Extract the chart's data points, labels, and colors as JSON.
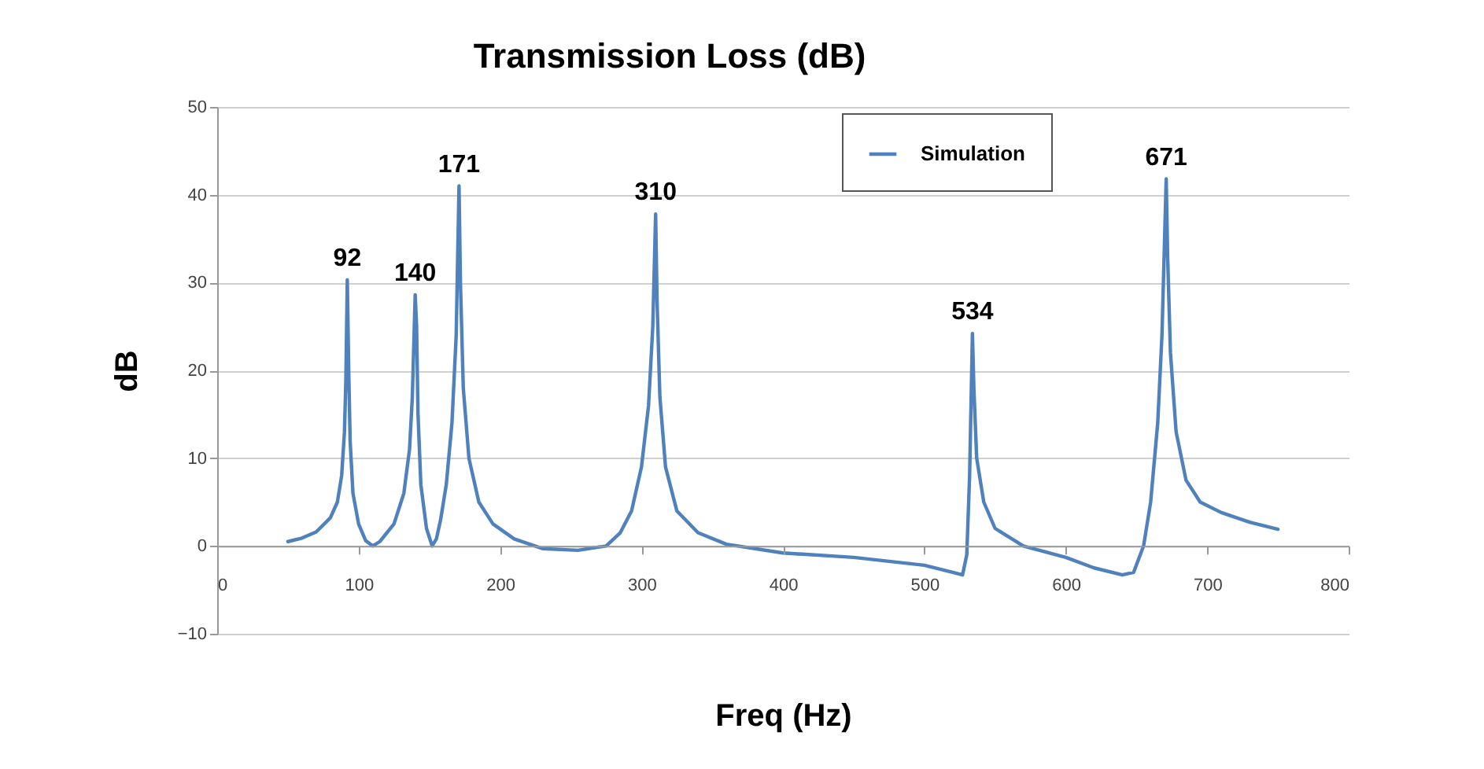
{
  "chart_data": {
    "type": "line",
    "title": "Transmission Loss (dB)",
    "xlabel": "Freq (Hz)",
    "ylabel": "dB",
    "xlim": [
      0,
      800
    ],
    "xticks": [
      0,
      100,
      200,
      300,
      400,
      500,
      600,
      700,
      800
    ],
    "ylim": [
      -10,
      50
    ],
    "yticks": [
      -10,
      0,
      10,
      20,
      30,
      40,
      50
    ],
    "grid": "y",
    "legend": "top right",
    "series": [
      {
        "name": "Simulation",
        "color": "#4f81bd",
        "x": [
          50,
          60,
          70,
          80,
          85,
          88,
          90,
          91,
          92,
          93,
          94,
          96,
          100,
          105,
          110,
          115,
          125,
          132,
          136,
          138,
          140,
          141,
          142,
          144,
          148,
          152,
          155,
          158,
          162,
          166,
          169,
          171,
          172,
          174,
          178,
          185,
          195,
          210,
          230,
          255,
          275,
          285,
          293,
          300,
          305,
          308,
          310,
          311,
          313,
          317,
          325,
          340,
          360,
          400,
          450,
          500,
          520,
          527,
          530,
          532,
          534,
          535,
          537,
          542,
          550,
          570,
          600,
          620,
          640,
          648,
          655,
          660,
          665,
          668,
          671,
          672,
          674,
          678,
          685,
          695,
          710,
          730,
          750
        ],
        "values": [
          0.5,
          0.9,
          1.6,
          3.2,
          5,
          8,
          13,
          19,
          30.3,
          20,
          12,
          6,
          2.5,
          0.6,
          0,
          0.5,
          2.5,
          6,
          11,
          17,
          28.6,
          25,
          15,
          7,
          2,
          0,
          0.8,
          3,
          7,
          14,
          24,
          41,
          30,
          18,
          10,
          5,
          2.5,
          0.8,
          -0.3,
          -0.5,
          0,
          1.5,
          4,
          9,
          16,
          25,
          37.8,
          28,
          17,
          9,
          4,
          1.5,
          0.2,
          -0.8,
          -1.3,
          -2.2,
          -3,
          -3.3,
          -1,
          8,
          24.2,
          18,
          10,
          5,
          2,
          0,
          -1.3,
          -2.5,
          -3.3,
          -3,
          0,
          5,
          14,
          24,
          41.8,
          33,
          22,
          13,
          7.5,
          5,
          3.8,
          2.7,
          1.9
        ]
      }
    ],
    "annotations": [
      {
        "text": "92",
        "x": 92,
        "y": 30.3
      },
      {
        "text": "140",
        "x": 140,
        "y": 28.6
      },
      {
        "text": "171",
        "x": 171,
        "y": 41
      },
      {
        "text": "310",
        "x": 310,
        "y": 37.8
      },
      {
        "text": "534",
        "x": 534,
        "y": 24.2
      },
      {
        "text": "671",
        "x": 671,
        "y": 41.8
      }
    ]
  }
}
